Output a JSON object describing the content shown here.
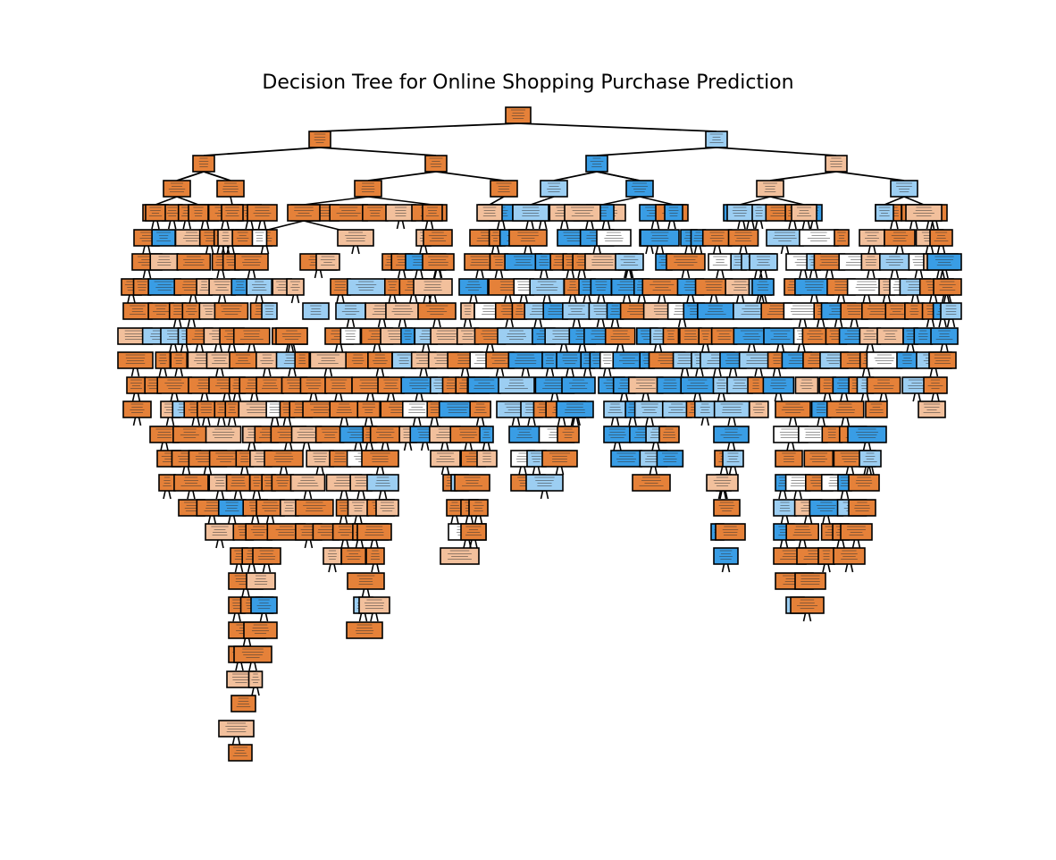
{
  "figure": {
    "title": "Decision Tree for Online Shopping Purchase Prediction"
  },
  "colors": {
    "class_no_strong": "#e58139",
    "class_no_light": "#f2c09c",
    "class_yes_strong": "#399de5",
    "class_yes_light": "#9ccef2",
    "neutral": "#ffffff",
    "edge": "#000000",
    "node_border": "#000000"
  },
  "legend": []
}
